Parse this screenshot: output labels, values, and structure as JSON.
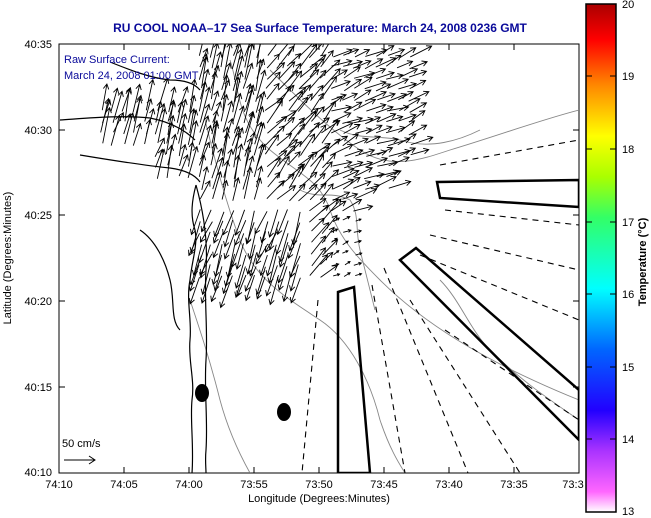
{
  "title": "RU COOL  NOAA–17  Sea Surface Temperature:  March 24, 2008 0236 GMT",
  "annotation": {
    "line1": "Raw Surface Current:",
    "line2": "March 24, 2008 01:00 GMT"
  },
  "scale": {
    "label": "50 cm/s"
  },
  "axes": {
    "xlabel": "Longitude (Degrees:Minutes)",
    "ylabel": "Latitude (Degrees:Minutes)",
    "xticks": [
      "74:10",
      "74:05",
      "74:00",
      "73:55",
      "73:50",
      "73:45",
      "73:40",
      "73:35",
      "73:3"
    ],
    "yticks": [
      "40:35",
      "40:30",
      "40:25",
      "40:20",
      "40:15",
      "40:10"
    ]
  },
  "colorbar": {
    "label": "Temperature (°C)",
    "ticks": [
      "20",
      "19",
      "18",
      "17",
      "16",
      "15",
      "14",
      "13"
    ],
    "range": [
      13,
      20
    ]
  },
  "colors": {
    "title": "#0a0a9a",
    "coast": "#000000",
    "bathymetry": "#888888",
    "arrows": "#000000"
  }
}
